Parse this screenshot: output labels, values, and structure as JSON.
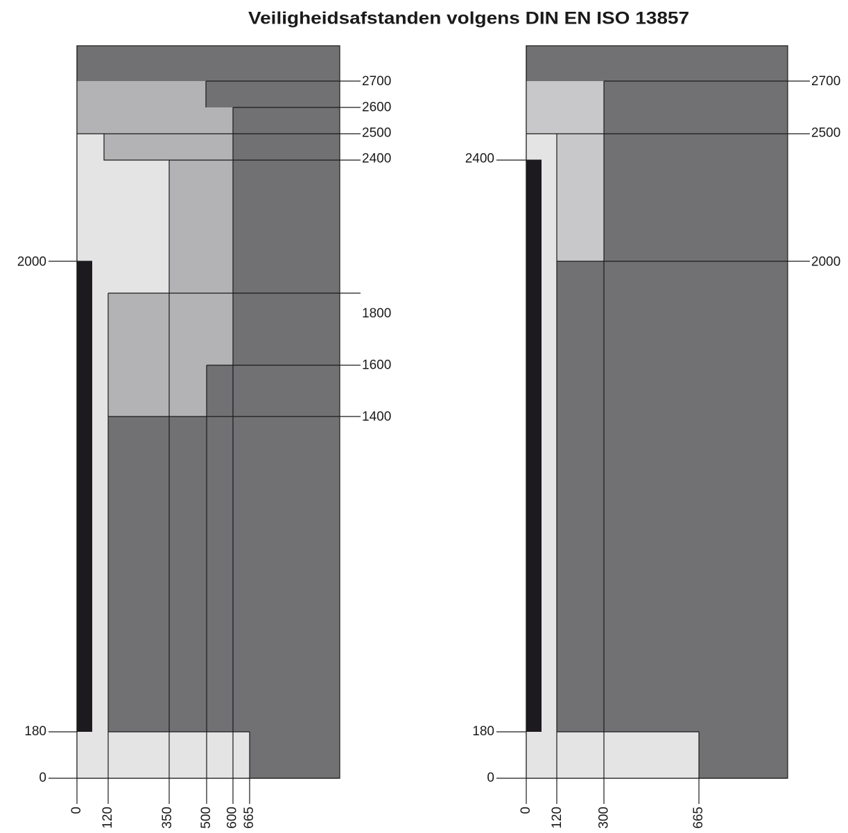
{
  "title": "Veiligheidsafstanden volgens DIN EN ISO 13857",
  "panels": [
    {
      "left_labels": [
        2000,
        180,
        0
      ],
      "right_labels": [
        2700,
        2600,
        2500,
        2400,
        1800,
        1600,
        1400
      ],
      "bottom_labels": [
        0,
        120,
        350,
        500,
        600,
        665
      ]
    },
    {
      "left_labels": [
        2400,
        180,
        0
      ],
      "right_labels": [
        2700,
        2500,
        2000
      ],
      "bottom_labels": [
        0,
        120,
        300,
        665
      ]
    }
  ]
}
